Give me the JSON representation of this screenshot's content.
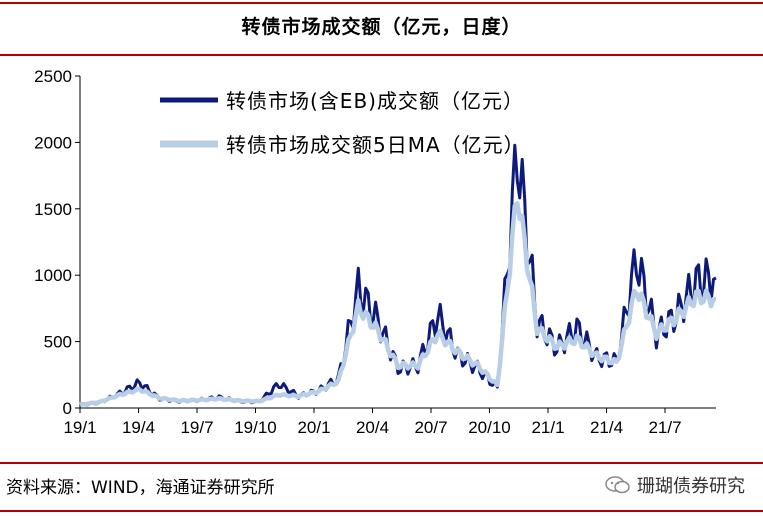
{
  "header": {
    "title": "转债市场成交额（亿元，日度）"
  },
  "footer": {
    "source": "资料来源：WIND，海通证券研究所",
    "watermark": "珊瑚债券研究"
  },
  "colors": {
    "accent_line": "#b30000",
    "series_volume": "#0d1a7a",
    "series_ma": "#b8cde6"
  },
  "chart_data": {
    "type": "line",
    "title": "",
    "xlabel": "",
    "ylabel": "",
    "ylim": [
      0,
      2500
    ],
    "yticks": [
      0,
      500,
      1000,
      1500,
      2000,
      2500
    ],
    "x_categories": [
      "19/1",
      "19/4",
      "19/7",
      "19/10",
      "20/1",
      "20/4",
      "20/7",
      "20/10",
      "21/1",
      "21/4",
      "21/7"
    ],
    "grid": false,
    "legend_position": "top-left inside",
    "series": [
      {
        "name": "转债市场(含EB)成交额（亿元）",
        "color": "#0d1a7a",
        "x": [
          "19/1",
          "19/2",
          "19/3",
          "19/4",
          "19/5",
          "19/6",
          "19/7",
          "19/8",
          "19/9",
          "19/10",
          "19/11",
          "19/12",
          "20/1",
          "20/2",
          "20/3",
          "20/4",
          "20/5",
          "20/6",
          "20/7",
          "20/8",
          "20/9",
          "20/10",
          "20/11",
          "20/12",
          "21/1",
          "21/2",
          "21/3",
          "21/4",
          "21/5",
          "21/6",
          "21/7",
          "21/8",
          "21/9"
        ],
        "values": [
          20,
          40,
          110,
          190,
          70,
          50,
          60,
          80,
          50,
          45,
          180,
          90,
          130,
          220,
          900,
          650,
          300,
          320,
          700,
          400,
          300,
          150,
          1950,
          650,
          450,
          600,
          380,
          350,
          1130,
          550,
          700,
          950,
          980
        ]
      },
      {
        "name": "转债市场成交额5日MA（亿元）",
        "color": "#b8cde6",
        "x": [
          "19/1",
          "19/2",
          "19/3",
          "19/4",
          "19/5",
          "19/6",
          "19/7",
          "19/8",
          "19/9",
          "19/10",
          "19/11",
          "19/12",
          "20/1",
          "20/2",
          "20/3",
          "20/4",
          "20/5",
          "20/6",
          "20/7",
          "20/8",
          "20/9",
          "20/10",
          "20/11",
          "20/12",
          "21/1",
          "21/2",
          "21/3",
          "21/4",
          "21/5",
          "21/6",
          "21/7",
          "21/8",
          "21/9"
        ],
        "values": [
          25,
          45,
          100,
          140,
          75,
          55,
          60,
          70,
          55,
          50,
          100,
          90,
          125,
          200,
          760,
          580,
          320,
          320,
          560,
          420,
          320,
          170,
          1620,
          600,
          460,
          520,
          390,
          340,
          900,
          560,
          680,
          840,
          820
        ]
      }
    ]
  }
}
